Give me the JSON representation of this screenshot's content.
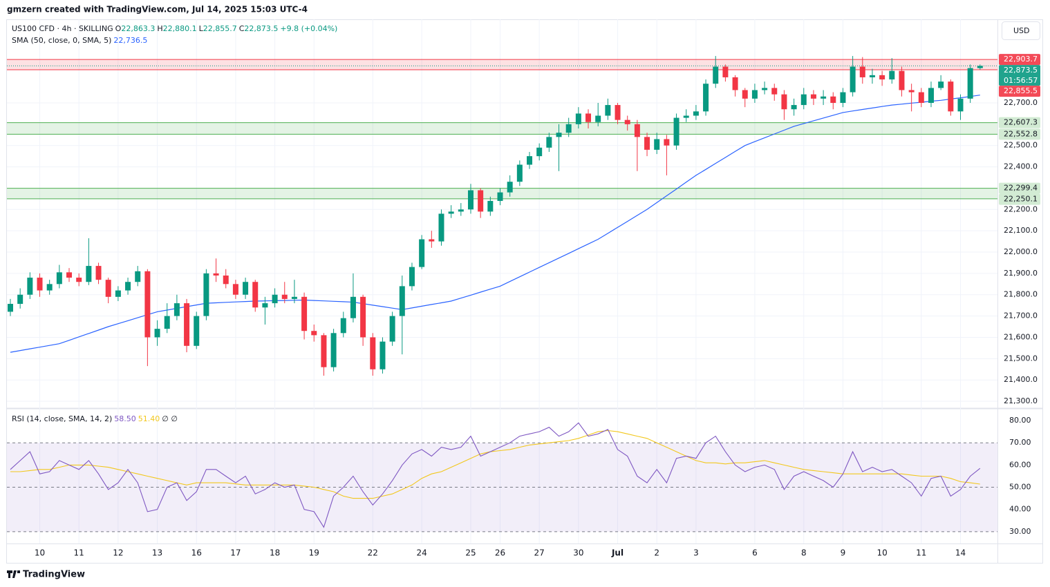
{
  "page": {
    "attribution": "gmzern created with TradingView.com, Jul 14, 2025 15:03 UTC-4",
    "currency": "USD",
    "logo": "TradingView"
  },
  "chart_data": [
    {
      "type": "candlestick",
      "title": "US100 CFD · 4h · SKILLING",
      "ohlc_legend": [
        {
          "key": "O",
          "value": "22,863.3"
        },
        {
          "key": "H",
          "value": "22,880.1"
        },
        {
          "key": "L",
          "value": "22,855.7"
        },
        {
          "key": "C",
          "value": "22,873.5"
        }
      ],
      "change": "+9.8 (+0.04%)",
      "categories": [
        null,
        null,
        null,
        "10",
        null,
        null,
        null,
        "11",
        null,
        null,
        null,
        "12",
        null,
        null,
        null,
        "13",
        null,
        null,
        null,
        "16",
        null,
        null,
        null,
        "17",
        null,
        null,
        null,
        "18",
        null,
        null,
        null,
        "19",
        null,
        null,
        null,
        null,
        null,
        "22",
        null,
        null,
        null,
        null,
        "24",
        null,
        null,
        null,
        null,
        "25",
        null,
        null,
        "26",
        null,
        null,
        null,
        "27",
        null,
        null,
        null,
        "30",
        null,
        null,
        null,
        "Jul",
        null,
        null,
        null,
        "2",
        null,
        null,
        null,
        "3",
        null,
        null,
        null,
        null,
        null,
        "6",
        null,
        null,
        null,
        null,
        "8",
        null,
        null,
        null,
        "9",
        null,
        null,
        null,
        "10",
        null,
        null,
        null,
        "11",
        null,
        null,
        null,
        "14",
        null,
        null
      ],
      "open": [
        21720,
        21757,
        21800,
        21880,
        21820,
        21850,
        21905,
        21880,
        21860,
        21935,
        21870,
        21790,
        21820,
        21860,
        21910,
        21600,
        21640,
        21700,
        21760,
        21560,
        21700,
        21900,
        21890,
        21850,
        21800,
        21860,
        21740,
        21760,
        21800,
        21780,
        21790,
        21630,
        21610,
        21460,
        21620,
        21690,
        21790,
        21600,
        21450,
        21580,
        21700,
        21840,
        21930,
        22060,
        22050,
        22180,
        22190,
        22200,
        22290,
        22190,
        22240,
        22280,
        22330,
        22410,
        22450,
        22490,
        22540,
        22560,
        22600,
        22650,
        22610,
        22640,
        22690,
        22620,
        22600,
        22540,
        22480,
        22530,
        22500,
        22630,
        22640,
        22660,
        22790,
        22870,
        22820,
        22760,
        22720,
        22760,
        22770,
        22740,
        22670,
        22690,
        22740,
        22720,
        22730,
        22700,
        22750,
        22870,
        22820,
        22830,
        22810,
        22850,
        22760,
        22750,
        22700,
        22770,
        22800,
        22660,
        22720,
        22863.3
      ],
      "high": [
        21780,
        21830,
        21905,
        21900,
        21870,
        21940,
        21925,
        21900,
        22065,
        21950,
        21880,
        21840,
        21880,
        21935,
        21920,
        21680,
        21760,
        21800,
        21780,
        21720,
        21920,
        21970,
        21920,
        21870,
        21880,
        21870,
        21790,
        21830,
        21860,
        21870,
        21810,
        21660,
        21620,
        21640,
        21720,
        21900,
        21800,
        21620,
        21600,
        21720,
        21890,
        21950,
        22080,
        22100,
        22200,
        22220,
        22230,
        22320,
        22300,
        22260,
        22300,
        22360,
        22430,
        22470,
        22510,
        22560,
        22600,
        22630,
        22680,
        22670,
        22700,
        22720,
        22700,
        22640,
        22620,
        22560,
        22560,
        22550,
        22650,
        22670,
        22690,
        22810,
        22920,
        22880,
        22830,
        22770,
        22790,
        22800,
        22790,
        22760,
        22720,
        22770,
        22760,
        22760,
        22750,
        22770,
        22920,
        22915,
        22860,
        22850,
        22910,
        22870,
        22790,
        22770,
        22800,
        22830,
        22810,
        22740,
        22880,
        22880.1
      ],
      "low": [
        21700,
        21735,
        21780,
        21790,
        21800,
        21830,
        21860,
        21840,
        21845,
        21850,
        21760,
        21770,
        21800,
        21840,
        21465,
        21560,
        21620,
        21680,
        21530,
        21545,
        21680,
        21860,
        21830,
        21780,
        21780,
        21720,
        21660,
        21740,
        21760,
        21760,
        21590,
        21580,
        21420,
        21440,
        21600,
        21670,
        21560,
        21420,
        21430,
        21560,
        21520,
        21820,
        21920,
        22020,
        22030,
        22160,
        22170,
        22180,
        22160,
        22170,
        22220,
        22260,
        22310,
        22390,
        22430,
        22470,
        22380,
        22540,
        22580,
        22580,
        22590,
        22620,
        22600,
        22570,
        22380,
        22450,
        22460,
        22360,
        22480,
        22610,
        22620,
        22640,
        22770,
        22800,
        22730,
        22680,
        22700,
        22740,
        22710,
        22620,
        22640,
        22670,
        22690,
        22690,
        22670,
        22680,
        22730,
        22790,
        22790,
        22780,
        22790,
        22730,
        22660,
        22680,
        22680,
        22760,
        22640,
        22620,
        22700,
        22855.7
      ],
      "close": [
        21757,
        21800,
        21880,
        21820,
        21850,
        21905,
        21880,
        21860,
        21935,
        21870,
        21790,
        21820,
        21860,
        21910,
        21600,
        21640,
        21700,
        21760,
        21560,
        21700,
        21900,
        21890,
        21850,
        21800,
        21860,
        21740,
        21760,
        21800,
        21780,
        21790,
        21630,
        21610,
        21460,
        21620,
        21690,
        21790,
        21600,
        21450,
        21580,
        21700,
        21840,
        21930,
        22060,
        22050,
        22180,
        22190,
        22200,
        22290,
        22190,
        22240,
        22280,
        22330,
        22410,
        22450,
        22490,
        22540,
        22560,
        22600,
        22650,
        22610,
        22640,
        22690,
        22620,
        22600,
        22540,
        22480,
        22530,
        22500,
        22630,
        22640,
        22660,
        22790,
        22870,
        22820,
        22760,
        22720,
        22760,
        22770,
        22740,
        22670,
        22690,
        22740,
        22720,
        22730,
        22700,
        22750,
        22870,
        22820,
        22830,
        22810,
        22850,
        22760,
        22750,
        22700,
        22770,
        22800,
        22660,
        22720,
        22863.3,
        22873.5
      ],
      "up_color": "#089981",
      "down_color": "#f23645",
      "ylim": [
        21271,
        23092
      ],
      "yticks": [
        {
          "value": 21300,
          "label": "21,300.0"
        },
        {
          "value": 21400,
          "label": "21,400.0"
        },
        {
          "value": 21500,
          "label": "21,500.0"
        },
        {
          "value": 21600,
          "label": "21,600.0"
        },
        {
          "value": 21700,
          "label": "21,700.0"
        },
        {
          "value": 21800,
          "label": "21,800.0"
        },
        {
          "value": 21900,
          "label": "21,900.0"
        },
        {
          "value": 22000,
          "label": "22,000.0"
        },
        {
          "value": 22100,
          "label": "22,100.0"
        },
        {
          "value": 22200,
          "label": "22,200.0"
        },
        {
          "value": 22400,
          "label": "22,400.0"
        },
        {
          "value": 22500,
          "label": "22,500.0"
        },
        {
          "value": 22700,
          "label": "22,700.0"
        }
      ],
      "grid": true,
      "series": [
        {
          "name": "SMA (50, close, 0, SMA, 5)",
          "color": "#2962ff",
          "value_label": "22,736.5",
          "values": [
            21530,
            21538,
            21546,
            21554,
            21562,
            21570,
            21586,
            21602,
            21618,
            21634,
            21650,
            21664,
            21678,
            21692,
            21706,
            21720,
            21728,
            21736,
            21744,
            21752,
            21760,
            21762,
            21764,
            21766,
            21768,
            21770,
            21771,
            21772,
            21773,
            21774,
            21775,
            21773,
            21771,
            21769,
            21767,
            21765,
            21758,
            21751,
            21744,
            21737,
            21730,
            21738,
            21746,
            21754,
            21762,
            21770,
            21784,
            21798,
            21812,
            21826,
            21840,
            21862,
            21884,
            21906,
            21928,
            21950,
            21972,
            21994,
            22016,
            22038,
            22060,
            22088,
            22116,
            22144,
            22172,
            22200,
            22232,
            22264,
            22296,
            22328,
            22360,
            22388,
            22416,
            22444,
            22472,
            22500,
            22518,
            22536,
            22554,
            22572,
            22590,
            22603,
            22616,
            22629,
            22642,
            22655,
            22662,
            22669,
            22676,
            22683,
            22690,
            22694,
            22699,
            22703,
            22708,
            22712,
            22718,
            22724,
            22730,
            22736.5
          ]
        }
      ],
      "zones": [
        {
          "color": "#f23645",
          "label_style": "solid",
          "low": {
            "value": 22855.5,
            "label": "22,855.5"
          },
          "high": {
            "value": 22903.7,
            "label": "22,903.7"
          }
        },
        {
          "color": "#4caf50",
          "label_style": "light",
          "low": {
            "value": 22552.8,
            "label": "22,552.8"
          },
          "high": {
            "value": 22607.3,
            "label": "22,607.3"
          }
        },
        {
          "color": "#4caf50",
          "label_style": "light",
          "low": {
            "value": 22250.1,
            "label": "22,250.1"
          },
          "high": {
            "value": 22299.4,
            "label": "22,299.4"
          }
        }
      ],
      "last_price": {
        "value": 22873.5,
        "label": "22,873.5"
      },
      "countdown": "01:56:57"
    },
    {
      "type": "line",
      "title": "RSI (14, close, SMA, 14, 2)",
      "extra_label": "∅ ∅",
      "ylim": [
        25.3,
        85.3
      ],
      "yticks": [
        {
          "value": 30,
          "label": "30.00"
        },
        {
          "value": 40,
          "label": "40.00"
        },
        {
          "value": 50,
          "label": "50.00"
        },
        {
          "value": 60,
          "label": "60.00"
        },
        {
          "value": 70,
          "label": "70.00"
        },
        {
          "value": 80,
          "label": "80.00"
        }
      ],
      "levels": [
        70,
        50,
        30
      ],
      "band_color": "#7e57c2",
      "series": [
        {
          "color": "#7e57c2",
          "value_label": "58.50",
          "values": [
            58,
            62,
            66,
            56,
            57,
            62,
            60,
            58,
            62,
            56,
            49,
            52,
            58,
            52,
            39,
            40,
            50,
            52,
            44,
            48,
            58,
            58,
            55,
            52,
            55,
            47,
            49,
            52,
            50,
            51,
            40,
            39,
            32,
            46,
            50,
            55,
            48,
            42,
            47,
            53,
            60,
            65,
            67,
            64,
            68,
            67,
            68,
            73,
            64,
            66,
            68,
            70,
            73,
            74,
            75,
            77,
            73,
            75,
            79,
            73,
            74,
            76,
            67,
            64,
            55,
            52,
            58,
            52,
            63,
            64,
            63,
            70,
            73,
            66,
            60,
            57,
            59,
            60,
            58,
            49,
            55,
            57,
            55,
            53,
            50,
            56,
            66,
            57,
            59,
            57,
            58,
            55,
            52,
            46,
            54,
            55,
            46,
            49,
            55,
            58.5
          ]
        },
        {
          "color": "#f2c71b",
          "value_label": "51.40",
          "values": [
            57,
            57,
            57.5,
            58,
            58,
            59,
            60,
            60,
            60,
            59.5,
            59,
            58,
            57,
            56,
            55,
            54,
            53,
            52,
            51,
            52,
            52,
            52,
            52,
            51.5,
            51,
            51,
            51,
            51,
            51,
            51,
            50.5,
            50,
            49,
            48,
            46,
            45,
            45,
            45,
            46,
            47,
            49,
            51,
            54,
            56,
            57,
            59,
            61,
            63,
            65,
            66,
            66.5,
            67,
            68,
            69,
            69.5,
            70,
            70.5,
            71,
            72,
            73.5,
            75,
            75.5,
            75,
            74,
            73,
            72,
            70,
            68,
            66,
            64,
            62,
            61,
            61,
            60.5,
            61,
            61,
            61.5,
            62,
            61,
            60,
            59,
            58,
            57.5,
            57,
            56.5,
            56,
            56,
            56,
            56,
            56,
            56,
            56,
            55.5,
            55,
            55,
            55,
            54,
            52.5,
            52,
            51.4
          ]
        }
      ]
    }
  ]
}
